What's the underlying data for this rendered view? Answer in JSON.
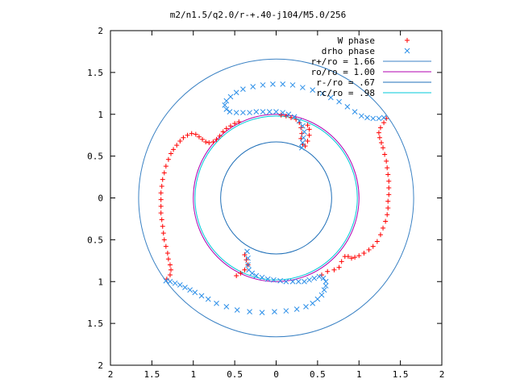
{
  "chart_data": {
    "type": "scatter",
    "title": "m2/n1.5/q2.0/r-+.40-j104/M5.0/256",
    "xlim": [
      -2,
      2
    ],
    "ylim": [
      -2,
      2
    ],
    "x_ticks": [
      {
        "value": -2,
        "label": "2"
      },
      {
        "value": -1.5,
        "label": "1.5"
      },
      {
        "value": -1,
        "label": "1"
      },
      {
        "value": -0.5,
        "label": "0.5"
      },
      {
        "value": 0,
        "label": "0"
      },
      {
        "value": 0.5,
        "label": "0.5"
      },
      {
        "value": 1,
        "label": "1"
      },
      {
        "value": 1.5,
        "label": "1.5"
      },
      {
        "value": 2,
        "label": "2"
      }
    ],
    "y_ticks": [
      {
        "value": 2,
        "label": "2"
      },
      {
        "value": 1.5,
        "label": "1.5"
      },
      {
        "value": 1,
        "label": "1"
      },
      {
        "value": 0.5,
        "label": "0.5"
      },
      {
        "value": 0,
        "label": "0"
      },
      {
        "value": -0.5,
        "label": "0.5"
      },
      {
        "value": -1,
        "label": "1"
      },
      {
        "value": -1.5,
        "label": "1.5"
      },
      {
        "value": -2,
        "label": "2"
      }
    ],
    "legend_position": "top-right",
    "grid": false,
    "circles": [
      {
        "name": "r+/ro = 1.66",
        "radius": 1.66,
        "color": "#3b82c4"
      },
      {
        "name": "ro/ro = 1.00",
        "radius": 1.0,
        "color": "#b000b0"
      },
      {
        "name": "r-/ro = .67",
        "radius": 0.67,
        "color": "#1f6fb8"
      },
      {
        "name": "rc/ro = .98",
        "radius": 0.98,
        "color": "#00c8d8"
      }
    ],
    "series": [
      {
        "name": "W phase",
        "marker": "plus",
        "color": "#ff0000",
        "points": [
          [
            1.33,
            0.95
          ],
          [
            1.3,
            0.9
          ],
          [
            1.26,
            0.84
          ],
          [
            1.24,
            0.78
          ],
          [
            1.25,
            0.72
          ],
          [
            1.27,
            0.66
          ],
          [
            1.29,
            0.6
          ],
          [
            1.31,
            0.52
          ],
          [
            1.33,
            0.44
          ],
          [
            1.34,
            0.36
          ],
          [
            1.35,
            0.28
          ],
          [
            1.36,
            0.2
          ],
          [
            1.36,
            0.12
          ],
          [
            1.36,
            0.04
          ],
          [
            1.35,
            -0.04
          ],
          [
            1.35,
            -0.12
          ],
          [
            1.34,
            -0.2
          ],
          [
            1.32,
            -0.28
          ],
          [
            1.29,
            -0.36
          ],
          [
            1.26,
            -0.44
          ],
          [
            1.22,
            -0.52
          ],
          [
            1.17,
            -0.58
          ],
          [
            1.12,
            -0.62
          ],
          [
            1.06,
            -0.66
          ],
          [
            1.0,
            -0.69
          ],
          [
            0.95,
            -0.71
          ],
          [
            0.91,
            -0.72
          ],
          [
            0.87,
            -0.7
          ],
          [
            0.83,
            -0.7
          ],
          [
            0.79,
            -0.76
          ],
          [
            0.76,
            -0.83
          ],
          [
            0.7,
            -0.86
          ],
          [
            0.62,
            -0.88
          ],
          [
            0.55,
            -0.92
          ],
          [
            -1.32,
            -0.97
          ],
          [
            -1.28,
            -0.92
          ],
          [
            -1.27,
            -0.86
          ],
          [
            -1.28,
            -0.8
          ],
          [
            -1.3,
            -0.73
          ],
          [
            -1.31,
            -0.66
          ],
          [
            -1.33,
            -0.58
          ],
          [
            -1.35,
            -0.5
          ],
          [
            -1.36,
            -0.42
          ],
          [
            -1.37,
            -0.34
          ],
          [
            -1.38,
            -0.26
          ],
          [
            -1.39,
            -0.18
          ],
          [
            -1.39,
            -0.1
          ],
          [
            -1.39,
            -0.02
          ],
          [
            -1.39,
            0.06
          ],
          [
            -1.38,
            0.14
          ],
          [
            -1.37,
            0.22
          ],
          [
            -1.35,
            0.3
          ],
          [
            -1.33,
            0.38
          ],
          [
            -1.3,
            0.46
          ],
          [
            -1.27,
            0.53
          ],
          [
            -1.24,
            0.58
          ],
          [
            -1.2,
            0.63
          ],
          [
            -1.16,
            0.68
          ],
          [
            -1.12,
            0.72
          ],
          [
            -1.07,
            0.75
          ],
          [
            -1.02,
            0.77
          ],
          [
            -0.97,
            0.76
          ],
          [
            -0.93,
            0.73
          ],
          [
            -0.89,
            0.7
          ],
          [
            -0.85,
            0.67
          ],
          [
            -0.81,
            0.66
          ],
          [
            -0.76,
            0.67
          ],
          [
            -0.72,
            0.7
          ],
          [
            -0.68,
            0.74
          ],
          [
            -0.64,
            0.79
          ],
          [
            -0.6,
            0.83
          ],
          [
            -0.55,
            0.86
          ],
          [
            -0.5,
            0.89
          ],
          [
            -0.45,
            0.91
          ],
          [
            0.06,
            0.99
          ],
          [
            0.12,
            0.98
          ],
          [
            0.18,
            0.96
          ],
          [
            0.24,
            0.94
          ],
          [
            0.28,
            0.9
          ],
          [
            0.3,
            0.84
          ],
          [
            0.31,
            0.77
          ],
          [
            0.3,
            0.71
          ],
          [
            0.32,
            0.64
          ],
          [
            0.35,
            0.62
          ],
          [
            0.38,
            0.68
          ],
          [
            0.4,
            0.75
          ],
          [
            0.4,
            0.82
          ],
          [
            0.38,
            0.87
          ],
          [
            -0.38,
            -0.68
          ],
          [
            -0.36,
            -0.74
          ],
          [
            -0.34,
            -0.8
          ],
          [
            -0.38,
            -0.86
          ],
          [
            -0.43,
            -0.9
          ],
          [
            -0.48,
            -0.93
          ]
        ]
      },
      {
        "name": "drho phase",
        "marker": "cross",
        "color": "#2a8ee8",
        "points": [
          [
            -1.33,
            -0.99
          ],
          [
            -1.28,
            -1.0
          ],
          [
            -1.22,
            -1.02
          ],
          [
            -1.16,
            -1.04
          ],
          [
            -1.1,
            -1.07
          ],
          [
            -1.04,
            -1.1
          ],
          [
            -0.98,
            -1.13
          ],
          [
            -0.9,
            -1.17
          ],
          [
            -0.82,
            -1.21
          ],
          [
            -0.72,
            -1.26
          ],
          [
            -0.6,
            -1.3
          ],
          [
            -0.47,
            -1.34
          ],
          [
            -0.32,
            -1.36
          ],
          [
            -0.17,
            -1.37
          ],
          [
            -0.02,
            -1.36
          ],
          [
            0.12,
            -1.35
          ],
          [
            0.25,
            -1.33
          ],
          [
            0.36,
            -1.3
          ],
          [
            0.44,
            -1.26
          ],
          [
            0.5,
            -1.21
          ],
          [
            0.55,
            -1.16
          ],
          [
            0.58,
            -1.1
          ],
          [
            0.6,
            -1.05
          ],
          [
            0.6,
            -1.0
          ],
          [
            0.57,
            -0.96
          ],
          [
            0.52,
            -0.94
          ],
          [
            0.46,
            -0.96
          ],
          [
            0.4,
            -0.98
          ],
          [
            0.34,
            -1.0
          ],
          [
            0.27,
            -1.0
          ],
          [
            0.2,
            -1.0
          ],
          [
            0.12,
            -1.0
          ],
          [
            0.05,
            -0.99
          ],
          [
            -0.03,
            -0.98
          ],
          [
            -0.1,
            -0.97
          ],
          [
            -0.17,
            -0.95
          ],
          [
            -0.24,
            -0.93
          ],
          [
            -0.29,
            -0.9
          ],
          [
            -0.33,
            -0.86
          ],
          [
            -0.34,
            -0.8
          ],
          [
            -0.34,
            -0.72
          ],
          [
            -0.35,
            -0.64
          ],
          [
            0.31,
            0.6
          ],
          [
            0.32,
            0.66
          ],
          [
            0.33,
            0.72
          ],
          [
            0.34,
            0.79
          ],
          [
            0.32,
            0.86
          ],
          [
            0.28,
            0.92
          ],
          [
            0.22,
            0.97
          ],
          [
            0.15,
            1.0
          ],
          [
            0.08,
            1.02
          ],
          [
            0.0,
            1.03
          ],
          [
            -0.08,
            1.03
          ],
          [
            -0.16,
            1.03
          ],
          [
            -0.24,
            1.03
          ],
          [
            -0.32,
            1.02
          ],
          [
            -0.4,
            1.02
          ],
          [
            -0.48,
            1.02
          ],
          [
            -0.56,
            1.03
          ],
          [
            -0.6,
            1.06
          ],
          [
            -0.62,
            1.11
          ],
          [
            -0.6,
            1.16
          ],
          [
            -0.55,
            1.21
          ],
          [
            -0.48,
            1.26
          ],
          [
            -0.4,
            1.3
          ],
          [
            -0.28,
            1.33
          ],
          [
            -0.16,
            1.35
          ],
          [
            -0.04,
            1.36
          ],
          [
            0.08,
            1.36
          ],
          [
            0.2,
            1.35
          ],
          [
            0.32,
            1.32
          ],
          [
            0.44,
            1.29
          ],
          [
            0.56,
            1.25
          ],
          [
            0.66,
            1.2
          ],
          [
            0.76,
            1.15
          ],
          [
            0.86,
            1.09
          ],
          [
            0.95,
            1.03
          ],
          [
            1.03,
            0.98
          ],
          [
            1.1,
            0.96
          ],
          [
            1.17,
            0.95
          ],
          [
            1.24,
            0.95
          ],
          [
            1.3,
            0.96
          ]
        ]
      }
    ]
  }
}
